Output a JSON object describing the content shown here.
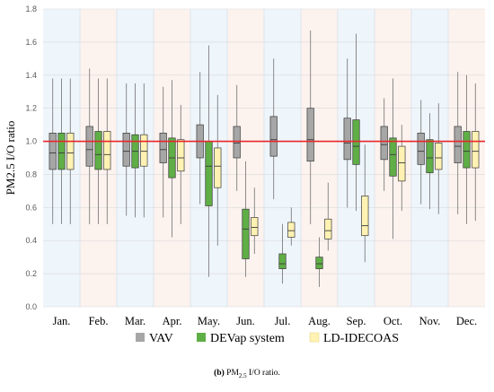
{
  "chart_data": {
    "type": "box",
    "ylabel": "PM2.5 I/O ratio",
    "ylim": [
      0,
      1.8
    ],
    "yticks": [
      "0.0",
      "0.2",
      "0.4",
      "0.6",
      "0.8",
      "1.0",
      "1.2",
      "1.4",
      "1.6",
      "1.8"
    ],
    "reference_line": 1.0,
    "reference_color": "#e8262a",
    "categories": [
      "Jan.",
      "Feb.",
      "Mar.",
      "Apr.",
      "May.",
      "Jun.",
      "Jul.",
      "Aug.",
      "Sep.",
      "Oct.",
      "Nov.",
      "Dec."
    ],
    "band_colors": [
      "#eef5fb",
      "#fcf2ee"
    ],
    "legend_position": "bottom",
    "series": [
      {
        "name": "VAV",
        "color": "#a6a6a6",
        "boxes": [
          {
            "min": 0.5,
            "q1": 0.83,
            "median": 0.93,
            "q3": 1.05,
            "max": 1.38
          },
          {
            "min": 0.5,
            "q1": 0.85,
            "median": 0.95,
            "q3": 1.09,
            "max": 1.44
          },
          {
            "min": 0.55,
            "q1": 0.85,
            "median": 0.94,
            "q3": 1.05,
            "max": 1.35
          },
          {
            "min": 0.54,
            "q1": 0.87,
            "median": 0.95,
            "q3": 1.05,
            "max": 1.33
          },
          {
            "min": 0.62,
            "q1": 0.9,
            "median": 1.0,
            "q3": 1.1,
            "max": 1.42
          },
          {
            "min": 0.7,
            "q1": 0.9,
            "median": 0.99,
            "q3": 1.09,
            "max": 1.34
          },
          {
            "min": 0.65,
            "q1": 0.91,
            "median": 1.01,
            "q3": 1.15,
            "max": 1.5
          },
          {
            "min": 0.5,
            "q1": 0.88,
            "median": 1.01,
            "q3": 1.2,
            "max": 1.67
          },
          {
            "min": 0.6,
            "q1": 0.89,
            "median": 0.99,
            "q3": 1.14,
            "max": 1.5
          },
          {
            "min": 0.7,
            "q1": 0.89,
            "median": 0.98,
            "q3": 1.09,
            "max": 1.26
          },
          {
            "min": 0.62,
            "q1": 0.86,
            "median": 0.94,
            "q3": 1.05,
            "max": 1.25
          },
          {
            "min": 0.56,
            "q1": 0.87,
            "median": 0.97,
            "q3": 1.09,
            "max": 1.42
          }
        ]
      },
      {
        "name": "DEVap system",
        "color": "#5fae46",
        "boxes": [
          {
            "min": 0.5,
            "q1": 0.83,
            "median": 0.93,
            "q3": 1.05,
            "max": 1.38
          },
          {
            "min": 0.5,
            "q1": 0.83,
            "median": 0.92,
            "q3": 1.06,
            "max": 1.38
          },
          {
            "min": 0.54,
            "q1": 0.84,
            "median": 0.94,
            "q3": 1.04,
            "max": 1.35
          },
          {
            "min": 0.42,
            "q1": 0.78,
            "median": 0.9,
            "q3": 1.02,
            "max": 1.37
          },
          {
            "min": 0.18,
            "q1": 0.61,
            "median": 0.85,
            "q3": 1.0,
            "max": 1.58
          },
          {
            "min": 0.18,
            "q1": 0.29,
            "median": 0.47,
            "q3": 0.59,
            "max": 0.88
          },
          {
            "min": 0.14,
            "q1": 0.23,
            "median": 0.26,
            "q3": 0.32,
            "max": 0.5
          },
          {
            "min": 0.12,
            "q1": 0.23,
            "median": 0.26,
            "q3": 0.3,
            "max": 0.42
          },
          {
            "min": 0.58,
            "q1": 0.86,
            "median": 0.97,
            "q3": 1.13,
            "max": 1.65
          },
          {
            "min": 0.41,
            "q1": 0.79,
            "median": 0.92,
            "q3": 1.02,
            "max": 1.38
          },
          {
            "min": 0.59,
            "q1": 0.81,
            "median": 0.9,
            "q3": 1.01,
            "max": 1.17
          },
          {
            "min": 0.5,
            "q1": 0.84,
            "median": 0.94,
            "q3": 1.06,
            "max": 1.4
          }
        ]
      },
      {
        "name": "LD-IDECOAS",
        "color": "#fff2b3",
        "boxes": [
          {
            "min": 0.5,
            "q1": 0.83,
            "median": 0.93,
            "q3": 1.05,
            "max": 1.38
          },
          {
            "min": 0.5,
            "q1": 0.83,
            "median": 0.92,
            "q3": 1.06,
            "max": 1.38
          },
          {
            "min": 0.54,
            "q1": 0.85,
            "median": 0.94,
            "q3": 1.04,
            "max": 1.35
          },
          {
            "min": 0.5,
            "q1": 0.82,
            "median": 0.9,
            "q3": 1.01,
            "max": 1.22
          },
          {
            "min": 0.37,
            "q1": 0.72,
            "median": 0.85,
            "q3": 0.96,
            "max": 1.28
          },
          {
            "min": 0.32,
            "q1": 0.43,
            "median": 0.48,
            "q3": 0.54,
            "max": 0.72
          },
          {
            "min": 0.37,
            "q1": 0.42,
            "median": 0.46,
            "q3": 0.51,
            "max": 0.6
          },
          {
            "min": 0.34,
            "q1": 0.41,
            "median": 0.46,
            "q3": 0.53,
            "max": 0.75
          },
          {
            "min": 0.27,
            "q1": 0.43,
            "median": 0.49,
            "q3": 0.67,
            "max": 0.98
          },
          {
            "min": 0.58,
            "q1": 0.76,
            "median": 0.87,
            "q3": 0.97,
            "max": 1.1
          },
          {
            "min": 0.56,
            "q1": 0.83,
            "median": 0.9,
            "q3": 0.99,
            "max": 1.23
          },
          {
            "min": 0.52,
            "q1": 0.84,
            "median": 0.94,
            "q3": 1.06,
            "max": 1.35
          }
        ]
      }
    ]
  },
  "caption": {
    "label": "(b)",
    "pm": "PM",
    "sub": "2.5",
    "rest": " I/O ratio."
  }
}
